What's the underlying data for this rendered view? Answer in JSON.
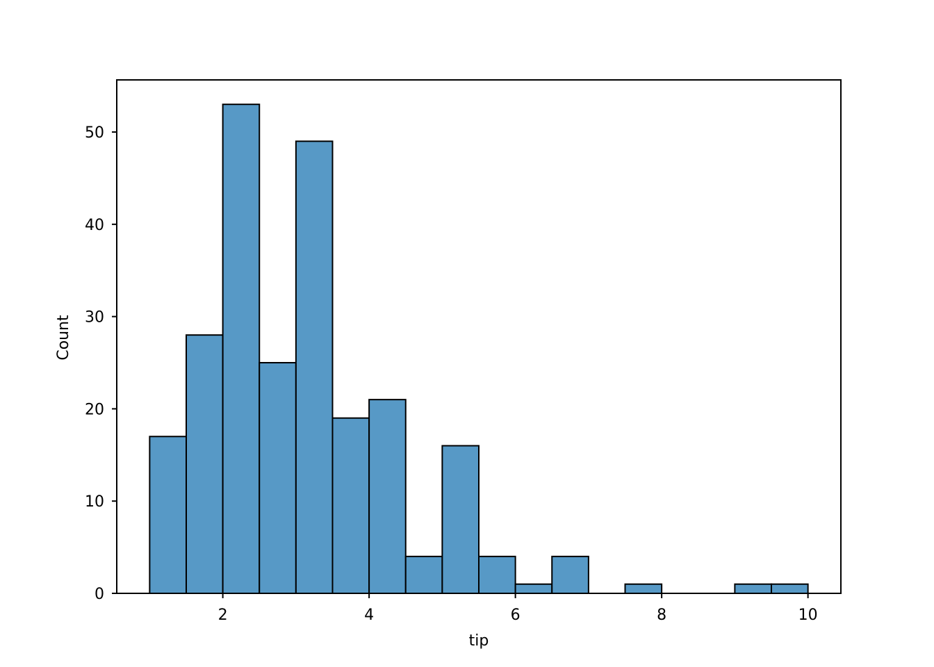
{
  "chart_data": {
    "type": "bar",
    "subtype": "histogram",
    "xlabel": "tip",
    "ylabel": "Count",
    "xlim": [
      0.55,
      10.45
    ],
    "ylim": [
      0,
      55.65
    ],
    "bin_edges": [
      1.0,
      1.5,
      2.0,
      2.5,
      3.0,
      3.5,
      4.0,
      4.5,
      5.0,
      5.5,
      6.0,
      6.5,
      7.0,
      7.5,
      8.0,
      8.5,
      9.0,
      9.5,
      10.0
    ],
    "counts": [
      17,
      28,
      53,
      25,
      49,
      19,
      21,
      4,
      16,
      4,
      1,
      4,
      0,
      1,
      0,
      0,
      1,
      1
    ],
    "xticks": [
      2,
      4,
      6,
      8,
      10
    ],
    "yticks": [
      0,
      10,
      20,
      30,
      40,
      50
    ],
    "bar_color": "#5799c6",
    "edge_color": "#000000",
    "grid": false,
    "legend": "none"
  }
}
